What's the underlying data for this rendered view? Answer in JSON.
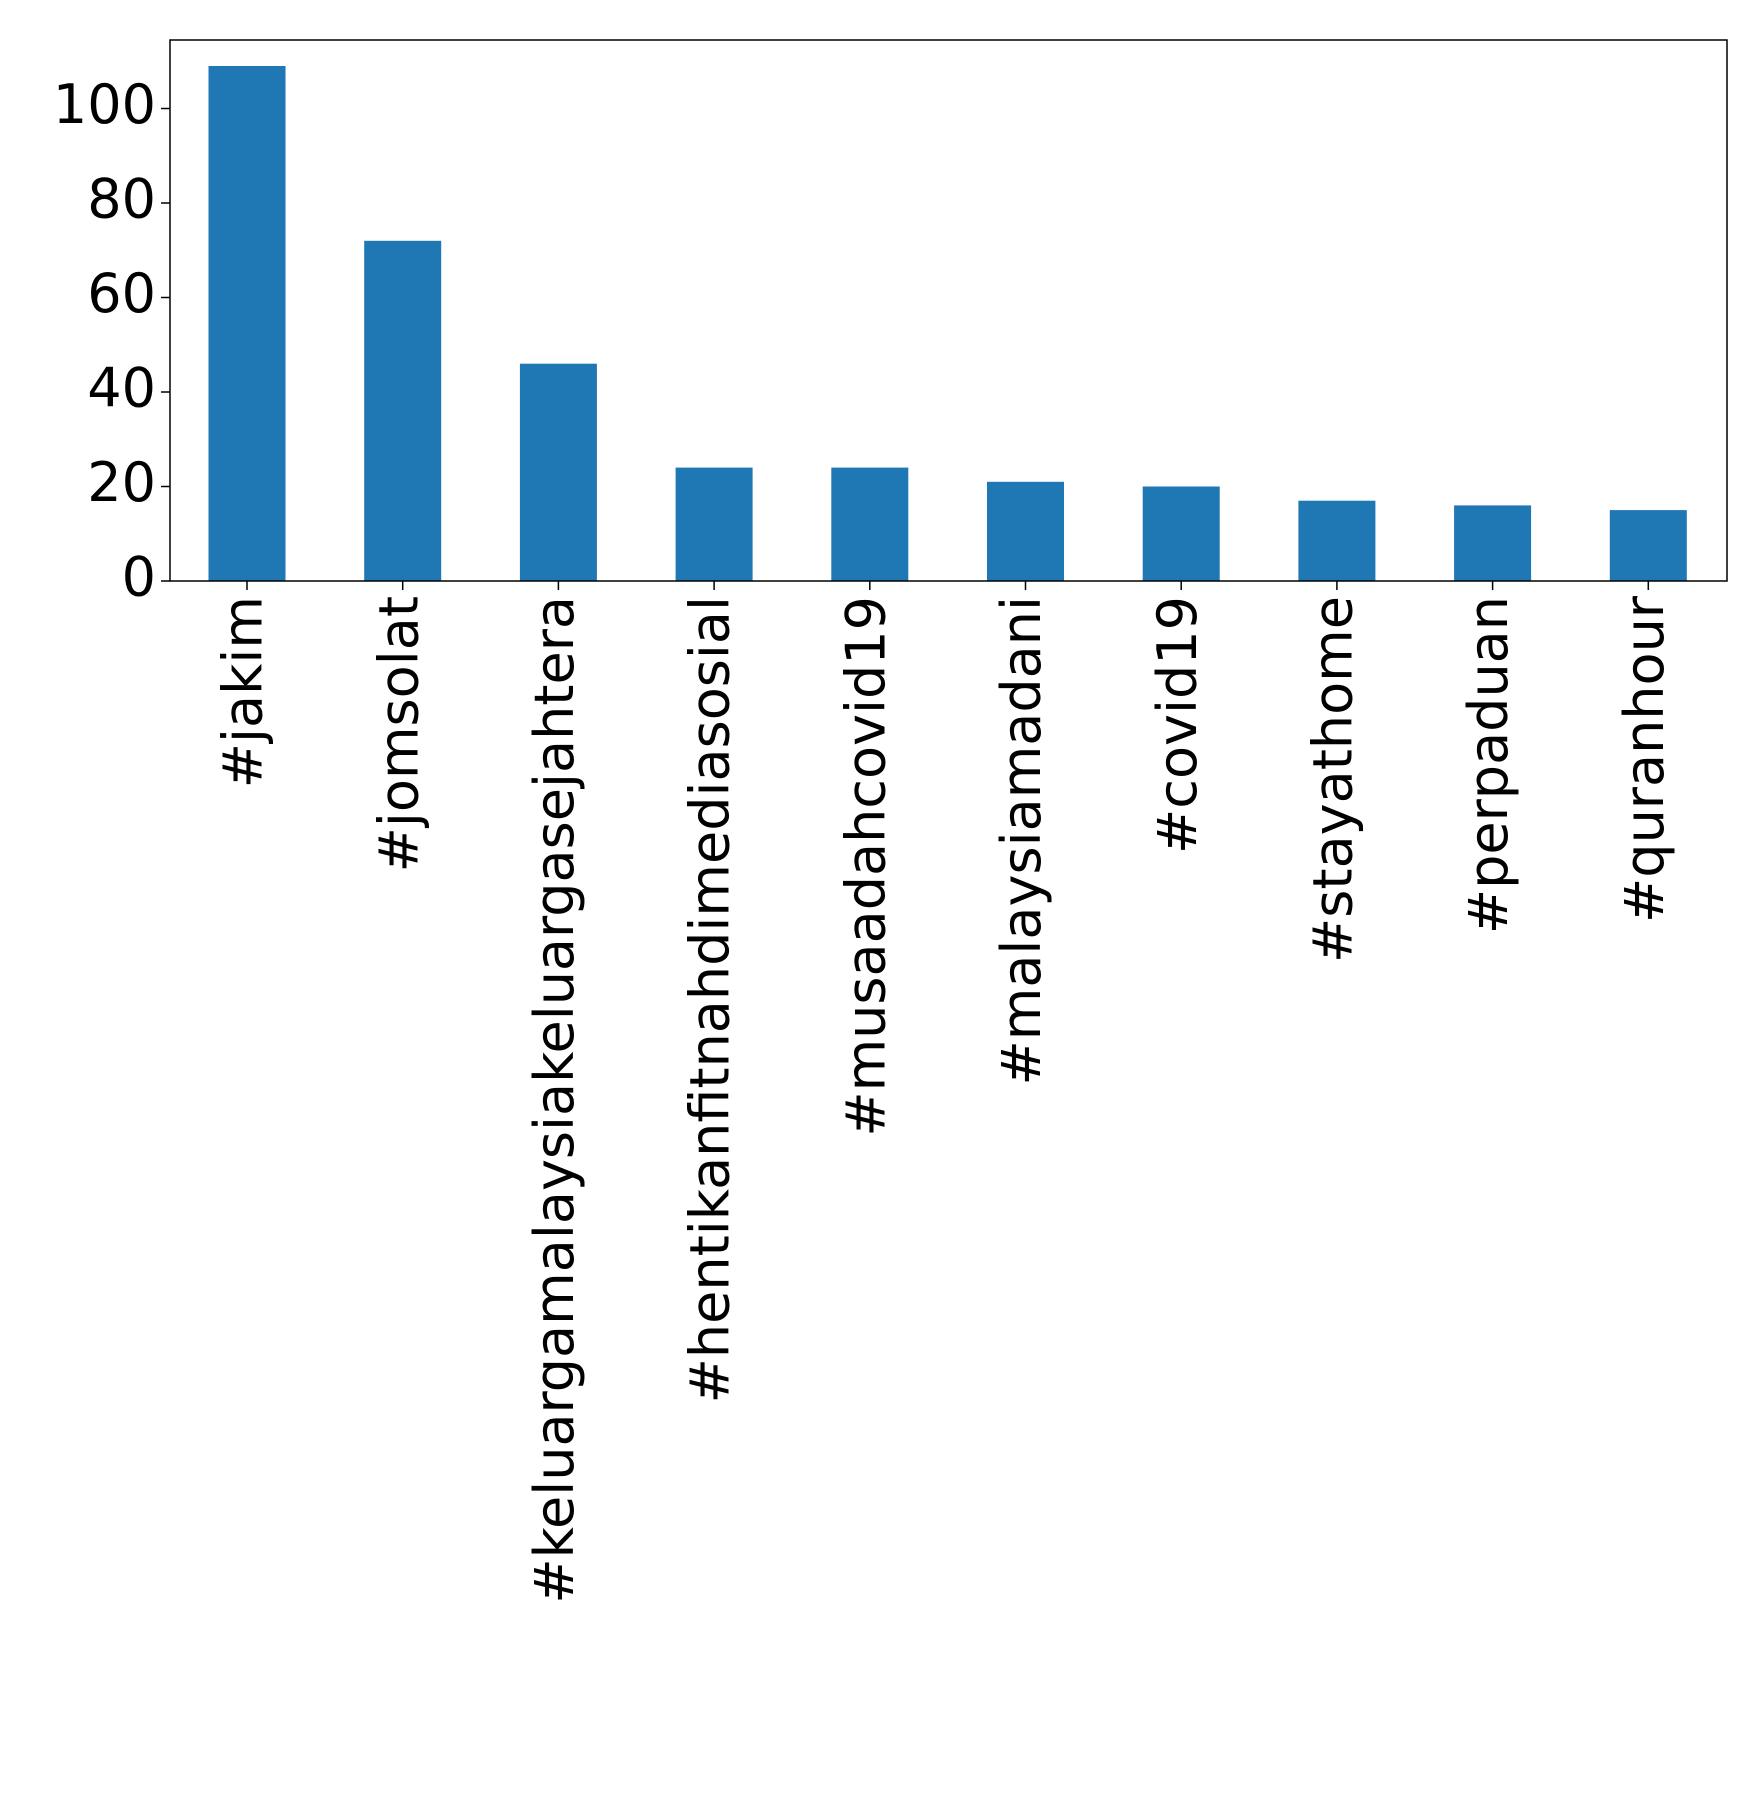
{
  "chart_data": {
    "type": "bar",
    "title": "",
    "xlabel": "",
    "ylabel": "",
    "categories": [
      "#jakim",
      "#jomsolat",
      "#keluargamalaysiakeluargasejahtera",
      "#hentikanfitnahdimediasosial",
      "#musaadahcovid19",
      "#malaysiamadani",
      "#covid19",
      "#stayathome",
      "#perpaduan",
      "#quranhour"
    ],
    "values": [
      109,
      72,
      46,
      24,
      24,
      21,
      20,
      17,
      16,
      15
    ],
    "ylim": [
      0,
      114.5
    ],
    "yticks": [
      0,
      20,
      40,
      60,
      80,
      100
    ],
    "ytick_labels": [
      "0",
      "20",
      "40",
      "60",
      "80",
      "100"
    ],
    "bar_color": "#1f77b4",
    "grid": false,
    "legend": "none"
  }
}
